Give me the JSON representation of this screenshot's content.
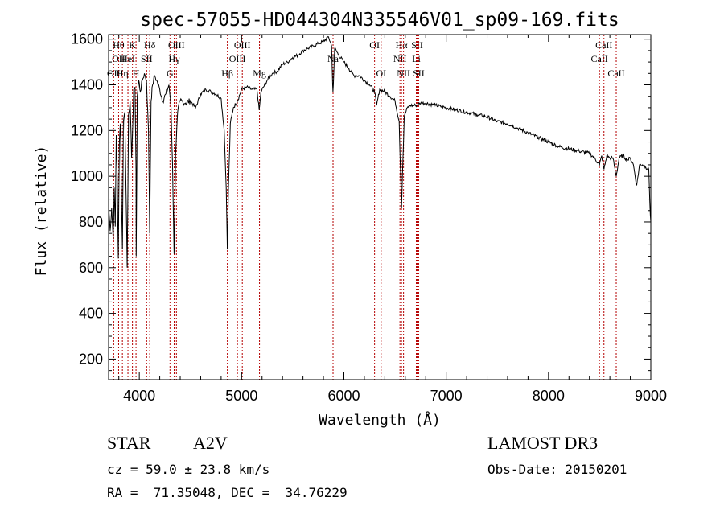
{
  "chart_data": {
    "type": "line",
    "title": "spec-57055-HD044304N335546V01_sp09-169.fits",
    "xlabel": "Wavelength (Å)",
    "ylabel": "Flux (relative)",
    "xlim": [
      3700,
      9000
    ],
    "ylim": [
      110,
      1620
    ],
    "xticks": [
      4000,
      5000,
      6000,
      7000,
      8000,
      9000
    ],
    "yticks": [
      200,
      400,
      600,
      800,
      1000,
      1200,
      1400,
      1600
    ],
    "series": [
      {
        "name": "spectrum",
        "anchors": [
          [
            3700,
            880
          ],
          [
            3715,
            760
          ],
          [
            3730,
            860
          ],
          [
            3745,
            720
          ],
          [
            3755,
            950
          ],
          [
            3765,
            780
          ],
          [
            3775,
            1180
          ],
          [
            3785,
            980
          ],
          [
            3795,
            640
          ],
          [
            3805,
            1150
          ],
          [
            3815,
            1230
          ],
          [
            3825,
            950
          ],
          [
            3835,
            680
          ],
          [
            3845,
            1240
          ],
          [
            3858,
            1280
          ],
          [
            3870,
            950
          ],
          [
            3882,
            600
          ],
          [
            3895,
            1270
          ],
          [
            3910,
            1330
          ],
          [
            3925,
            1080
          ],
          [
            3933,
            1180
          ],
          [
            3945,
            1380
          ],
          [
            3958,
            1390
          ],
          [
            3968,
            1020
          ],
          [
            3970,
            650
          ],
          [
            3980,
            1350
          ],
          [
            3995,
            1420
          ],
          [
            4010,
            1370
          ],
          [
            4030,
            1420
          ],
          [
            4050,
            1450
          ],
          [
            4070,
            1420
          ],
          [
            4090,
            1200
          ],
          [
            4102,
            750
          ],
          [
            4115,
            1330
          ],
          [
            4130,
            1400
          ],
          [
            4150,
            1440
          ],
          [
            4170,
            1420
          ],
          [
            4200,
            1380
          ],
          [
            4230,
            1330
          ],
          [
            4260,
            1360
          ],
          [
            4290,
            1400
          ],
          [
            4310,
            1300
          ],
          [
            4325,
            1050
          ],
          [
            4340,
            660
          ],
          [
            4355,
            1100
          ],
          [
            4375,
            1280
          ],
          [
            4400,
            1330
          ],
          [
            4450,
            1320
          ],
          [
            4500,
            1330
          ],
          [
            4550,
            1300
          ],
          [
            4600,
            1360
          ],
          [
            4650,
            1380
          ],
          [
            4700,
            1370
          ],
          [
            4750,
            1360
          ],
          [
            4800,
            1340
          ],
          [
            4830,
            1200
          ],
          [
            4850,
            950
          ],
          [
            4861,
            680
          ],
          [
            4872,
            950
          ],
          [
            4890,
            1230
          ],
          [
            4920,
            1300
          ],
          [
            4960,
            1330
          ],
          [
            5000,
            1380
          ],
          [
            5050,
            1390
          ],
          [
            5100,
            1380
          ],
          [
            5150,
            1380
          ],
          [
            5172,
            1290
          ],
          [
            5190,
            1370
          ],
          [
            5250,
            1420
          ],
          [
            5300,
            1450
          ],
          [
            5350,
            1460
          ],
          [
            5400,
            1490
          ],
          [
            5450,
            1500
          ],
          [
            5500,
            1520
          ],
          [
            5550,
            1530
          ],
          [
            5600,
            1550
          ],
          [
            5650,
            1560
          ],
          [
            5700,
            1570
          ],
          [
            5750,
            1580
          ],
          [
            5800,
            1590
          ],
          [
            5850,
            1610
          ],
          [
            5880,
            1570
          ],
          [
            5890,
            1400
          ],
          [
            5893,
            1370
          ],
          [
            5897,
            1400
          ],
          [
            5910,
            1560
          ],
          [
            5950,
            1530
          ],
          [
            6000,
            1500
          ],
          [
            6050,
            1470
          ],
          [
            6100,
            1440
          ],
          [
            6150,
            1440
          ],
          [
            6200,
            1420
          ],
          [
            6250,
            1400
          ],
          [
            6300,
            1370
          ],
          [
            6320,
            1310
          ],
          [
            6350,
            1380
          ],
          [
            6400,
            1370
          ],
          [
            6450,
            1350
          ],
          [
            6500,
            1330
          ],
          [
            6540,
            1240
          ],
          [
            6555,
            1000
          ],
          [
            6563,
            860
          ],
          [
            6572,
            1000
          ],
          [
            6590,
            1260
          ],
          [
            6620,
            1300
          ],
          [
            6650,
            1310
          ],
          [
            6700,
            1310
          ],
          [
            6750,
            1320
          ],
          [
            6800,
            1320
          ],
          [
            6900,
            1310
          ],
          [
            7000,
            1300
          ],
          [
            7100,
            1290
          ],
          [
            7200,
            1280
          ],
          [
            7300,
            1270
          ],
          [
            7400,
            1260
          ],
          [
            7500,
            1240
          ],
          [
            7600,
            1230
          ],
          [
            7700,
            1210
          ],
          [
            7800,
            1190
          ],
          [
            7900,
            1170
          ],
          [
            8000,
            1150
          ],
          [
            8100,
            1130
          ],
          [
            8200,
            1120
          ],
          [
            8300,
            1110
          ],
          [
            8400,
            1100
          ],
          [
            8450,
            1080
          ],
          [
            8498,
            1050
          ],
          [
            8520,
            1090
          ],
          [
            8542,
            1030
          ],
          [
            8570,
            1090
          ],
          [
            8600,
            1080
          ],
          [
            8630,
            1080
          ],
          [
            8662,
            1000
          ],
          [
            8690,
            1080
          ],
          [
            8730,
            1090
          ],
          [
            8770,
            1070
          ],
          [
            8800,
            1080
          ],
          [
            8830,
            1050
          ],
          [
            8862,
            960
          ],
          [
            8890,
            1050
          ],
          [
            8920,
            1050
          ],
          [
            8950,
            1040
          ],
          [
            8980,
            1030
          ],
          [
            8995,
            830
          ],
          [
            9000,
            800
          ]
        ]
      }
    ],
    "line_marks": [
      {
        "wave": 3750,
        "labels": [
          {
            "text": "OII",
            "row": 2
          }
        ]
      },
      {
        "wave": 3798,
        "labels": [
          {
            "text": "Hθ",
            "row": 0
          },
          {
            "text": "OII",
            "row": 1
          }
        ]
      },
      {
        "wave": 3835,
        "labels": [
          {
            "text": "Hη",
            "row": 2
          }
        ]
      },
      {
        "wave": 3889,
        "labels": [
          {
            "text": "HeI",
            "row": 1
          }
        ]
      },
      {
        "wave": 3933,
        "labels": [
          {
            "text": "K",
            "row": 0
          }
        ]
      },
      {
        "wave": 3968,
        "labels": [
          {
            "text": "H",
            "row": 2
          }
        ]
      },
      {
        "wave": 4072,
        "labels": [
          {
            "text": "SII",
            "row": 1
          }
        ]
      },
      {
        "wave": 4102,
        "labels": [
          {
            "text": "Hδ",
            "row": 0
          }
        ]
      },
      {
        "wave": 4300,
        "labels": [
          {
            "text": "G",
            "row": 2
          }
        ]
      },
      {
        "wave": 4341,
        "labels": [
          {
            "text": "Hγ",
            "row": 1
          }
        ]
      },
      {
        "wave": 4363,
        "labels": [
          {
            "text": "OIII",
            "row": 0
          }
        ]
      },
      {
        "wave": 4861,
        "labels": [
          {
            "text": "Hβ",
            "row": 2
          }
        ]
      },
      {
        "wave": 4959,
        "labels": [
          {
            "text": "OIII",
            "row": 1
          }
        ]
      },
      {
        "wave": 5007,
        "labels": [
          {
            "text": "OIII",
            "row": 0
          }
        ]
      },
      {
        "wave": 5175,
        "labels": [
          {
            "text": "Mg",
            "row": 2
          }
        ]
      },
      {
        "wave": 5894,
        "labels": [
          {
            "text": "Na",
            "row": 1
          }
        ]
      },
      {
        "wave": 6300,
        "labels": [
          {
            "text": "OI",
            "row": 0
          }
        ]
      },
      {
        "wave": 6364,
        "labels": [
          {
            "text": "OI",
            "row": 2
          }
        ]
      },
      {
        "wave": 6548,
        "labels": [
          {
            "text": "NII",
            "row": 1
          }
        ]
      },
      {
        "wave": 6563,
        "labels": [
          {
            "text": "Hα",
            "row": 0
          }
        ]
      },
      {
        "wave": 6583,
        "labels": [
          {
            "text": "NII",
            "row": 2
          }
        ]
      },
      {
        "wave": 6708,
        "labels": [
          {
            "text": "Li",
            "row": 1
          }
        ]
      },
      {
        "wave": 6716,
        "labels": [
          {
            "text": "SII",
            "row": 0
          }
        ]
      },
      {
        "wave": 6731,
        "labels": [
          {
            "text": "SII",
            "row": 2
          }
        ]
      },
      {
        "wave": 8498,
        "labels": [
          {
            "text": "CaII",
            "row": 1
          }
        ]
      },
      {
        "wave": 8542,
        "labels": [
          {
            "text": "CaII",
            "row": 0
          }
        ]
      },
      {
        "wave": 8662,
        "labels": [
          {
            "text": "CaII",
            "row": 2
          }
        ]
      }
    ],
    "line_color": "#b40000",
    "spectrum_color": "#000000"
  },
  "info": {
    "object_class": "STAR",
    "subclass": "A2V",
    "survey": "LAMOST DR3",
    "cz": "cz = 59.0 ± 23.8 km/s",
    "obs_date": "Obs-Date: 20150201",
    "coords": "RA =  71.35048, DEC =  34.76229"
  }
}
